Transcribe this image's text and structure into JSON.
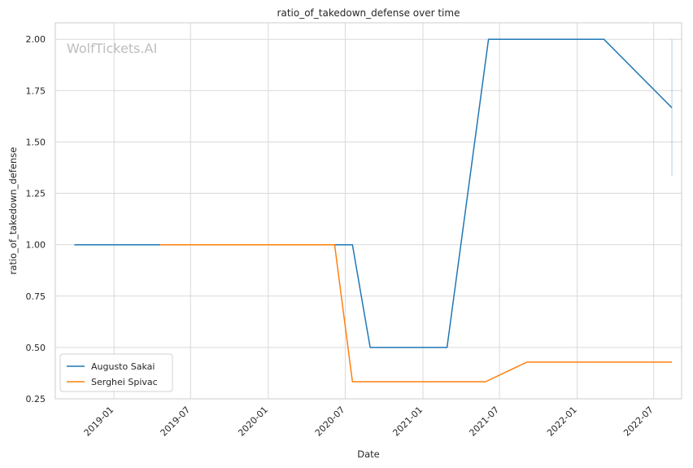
{
  "chart_data": {
    "type": "line",
    "title": "ratio_of_takedown_defense over time",
    "xlabel": "Date",
    "ylabel": "ratio_of_takedown_defense",
    "watermark": "WolfTickets.AI",
    "ylim": [
      0.25,
      2.08
    ],
    "yticks": [
      0.25,
      0.5,
      0.75,
      1.0,
      1.25,
      1.5,
      1.75,
      2.0
    ],
    "ytick_labels": [
      "0.25",
      "0.50",
      "0.75",
      "1.00",
      "1.25",
      "1.50",
      "1.75",
      "2.00"
    ],
    "xlim": [
      "2018-08-15",
      "2022-09-05"
    ],
    "xticks": [
      "2019-01-01",
      "2019-07-01",
      "2020-01-01",
      "2020-07-01",
      "2021-01-01",
      "2021-07-01",
      "2022-01-01",
      "2022-07-01"
    ],
    "xtick_labels": [
      "2019-01",
      "2019-07",
      "2020-01",
      "2020-07",
      "2021-01",
      "2021-07",
      "2022-01",
      "2022-07"
    ],
    "grid": true,
    "legend_position": "lower-left",
    "series": [
      {
        "name": "Augusto Sakai",
        "color": "#1f77b4",
        "points": [
          [
            "2018-09-29",
            1.0
          ],
          [
            "2020-07-18",
            1.0
          ],
          [
            "2020-08-29",
            0.5
          ],
          [
            "2021-02-27",
            0.5
          ],
          [
            "2021-06-05",
            2.0
          ],
          [
            "2022-03-05",
            2.0
          ],
          [
            "2022-08-13",
            1.6667
          ]
        ]
      },
      {
        "name": "Serghei Spivac",
        "color": "#ff7f0e",
        "points": [
          [
            "2019-04-20",
            1.0
          ],
          [
            "2020-06-06",
            1.0
          ],
          [
            "2020-07-18",
            0.3333
          ],
          [
            "2021-05-29",
            0.3333
          ],
          [
            "2021-09-04",
            0.4286
          ],
          [
            "2022-08-13",
            0.4286
          ]
        ]
      }
    ],
    "error_band": {
      "x": "2022-08-13",
      "y_range": [
        1.3333,
        2.0
      ],
      "color": "#1f77b4"
    }
  }
}
